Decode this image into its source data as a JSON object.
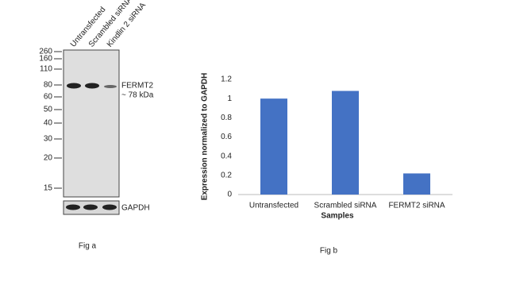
{
  "blot": {
    "lanes": [
      "Untransfected",
      "Scrambled siRNA",
      "Kindlin 2 siRNA"
    ],
    "markers": [
      260,
      160,
      110,
      80,
      60,
      50,
      40,
      30,
      20,
      15
    ],
    "target": "FERMT2",
    "target_size": "~ 78 kDa",
    "control": "GAPDH",
    "caption": "Fig a"
  },
  "chart_data": {
    "type": "bar",
    "caption": "Fig b",
    "y_label": "Expression normalized to GAPDH",
    "x_label": "Samples",
    "categories": [
      "Untransfected",
      "Scrambled siRNA",
      "FERMT2 siRNA"
    ],
    "values": [
      1.0,
      1.08,
      0.22
    ],
    "color": "#4472c4",
    "ylim": [
      0,
      1.2
    ],
    "yticks": [
      0,
      0.2,
      0.4,
      0.6,
      0.8,
      1,
      1.2
    ],
    "grid": false
  }
}
